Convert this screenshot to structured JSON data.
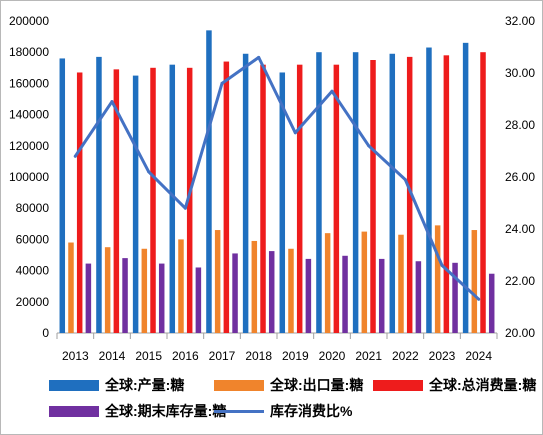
{
  "chart_data": {
    "type": "bar",
    "categories": [
      "2013",
      "2014",
      "2015",
      "2016",
      "2017",
      "2018",
      "2019",
      "2020",
      "2021",
      "2022",
      "2023",
      "2024"
    ],
    "series": [
      {
        "name": "全球:产量:糖",
        "type": "bar",
        "axis": "left",
        "color": "#1f6fbf",
        "values": [
          176000,
          177000,
          165000,
          172000,
          194000,
          179000,
          167000,
          180000,
          180000,
          179000,
          183000,
          186000
        ]
      },
      {
        "name": "全球:出口量:糖",
        "type": "bar",
        "axis": "left",
        "color": "#f0842c",
        "values": [
          58000,
          55000,
          54000,
          60000,
          66000,
          59000,
          54000,
          64000,
          65000,
          63000,
          69000,
          66000
        ]
      },
      {
        "name": "全球:总消费量:糖",
        "type": "bar",
        "axis": "left",
        "color": "#ee1c1c",
        "values": [
          167000,
          169000,
          170000,
          170000,
          174000,
          172000,
          172000,
          172000,
          175000,
          177000,
          178000,
          180000
        ]
      },
      {
        "name": "全球:期末库存量:糖",
        "type": "bar",
        "axis": "left",
        "color": "#7030a0",
        "values": [
          44500,
          48000,
          44500,
          42000,
          51000,
          52500,
          47500,
          49500,
          47500,
          46000,
          45000,
          38000
        ]
      },
      {
        "name": "库存消费比%",
        "type": "line",
        "axis": "right",
        "color": "#4472c4",
        "values": [
          26.8,
          28.9,
          26.2,
          24.8,
          29.6,
          30.6,
          27.7,
          29.3,
          27.2,
          25.9,
          22.6,
          21.3
        ]
      }
    ],
    "y_left": {
      "min": 0,
      "max": 200000,
      "ticks": [
        "0",
        "20000",
        "40000",
        "60000",
        "80000",
        "100000",
        "120000",
        "140000",
        "160000",
        "180000",
        "200000"
      ]
    },
    "y_right": {
      "min": 20,
      "max": 32,
      "ticks": [
        "20.00",
        "22.00",
        "24.00",
        "26.00",
        "28.00",
        "30.00",
        "32.00"
      ]
    },
    "grid": false,
    "legend_position": "bottom"
  }
}
